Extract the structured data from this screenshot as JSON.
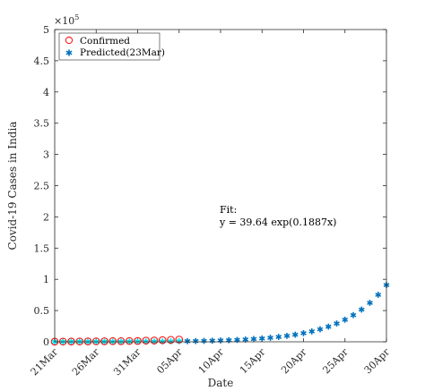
{
  "chart_data": {
    "type": "scatter",
    "xlabel": "Date",
    "ylabel": "Covid-19 Cases in India",
    "x_ticks": [
      "21Mar",
      "26Mar",
      "31Mar",
      "05Apr",
      "10Apr",
      "15Apr",
      "20Apr",
      "25Apr",
      "30Apr"
    ],
    "y_ticks": [
      "0",
      "0.5",
      "1",
      "1.5",
      "2",
      "2.5",
      "3",
      "3.5",
      "4",
      "4.5",
      "5"
    ],
    "y_exponent_label": "×10",
    "y_exponent_power": "5",
    "xlim": [
      "21Mar",
      "30Apr"
    ],
    "ylim": [
      0,
      500000
    ],
    "grid": false,
    "legend_position": "top-left",
    "series": [
      {
        "name": "Confirmed",
        "marker": "circle",
        "color": "#ff0000",
        "dates": [
          "21Mar",
          "22Mar",
          "23Mar",
          "24Mar",
          "25Mar",
          "26Mar",
          "27Mar",
          "28Mar",
          "29Mar",
          "30Mar",
          "31Mar",
          "01Apr",
          "02Apr",
          "03Apr",
          "04Apr",
          "05Apr"
        ],
        "values": [
          283,
          360,
          468,
          519,
          606,
          694,
          834,
          918,
          1024,
          1251,
          1397,
          1834,
          2069,
          2547,
          3072,
          3577
        ]
      },
      {
        "name": "Predicted(23Mar)",
        "marker": "asterisk",
        "color": "#0072bd",
        "dates": [
          "21Mar",
          "22Mar",
          "23Mar",
          "24Mar",
          "25Mar",
          "26Mar",
          "27Mar",
          "28Mar",
          "29Mar",
          "30Mar",
          "31Mar",
          "01Apr",
          "02Apr",
          "03Apr",
          "04Apr",
          "05Apr",
          "06Apr",
          "07Apr",
          "08Apr",
          "09Apr",
          "10Apr",
          "11Apr",
          "12Apr",
          "13Apr",
          "14Apr",
          "15Apr",
          "16Apr",
          "17Apr",
          "18Apr",
          "19Apr",
          "20Apr",
          "21Apr",
          "22Apr",
          "23Apr",
          "24Apr",
          "25Apr",
          "26Apr",
          "27Apr",
          "28Apr",
          "29Apr",
          "30Apr"
        ],
        "values": [
          48,
          58,
          70,
          84,
          102,
          123,
          148,
          179,
          217,
          262,
          316,
          381,
          460,
          556,
          672,
          811,
          980,
          1183,
          1429,
          1726,
          2085,
          2518,
          3041,
          3673,
          4436,
          5357,
          6470,
          7814,
          9437,
          11397,
          13765,
          16623,
          20076,
          24247,
          29283,
          35365,
          42711,
          51583,
          62298,
          75238,
          90866
        ]
      }
    ],
    "legend": [
      "Confirmed",
      "Predicted(23Mar)"
    ],
    "annotation": {
      "line1": "Fit:",
      "line2": "y = 39.64 exp(0.1887x)"
    }
  },
  "colors": {
    "confirmed": "#ff0000",
    "predicted": "#0072bd",
    "cyan_overlap": "#00e5ee",
    "axis": "#262626"
  }
}
